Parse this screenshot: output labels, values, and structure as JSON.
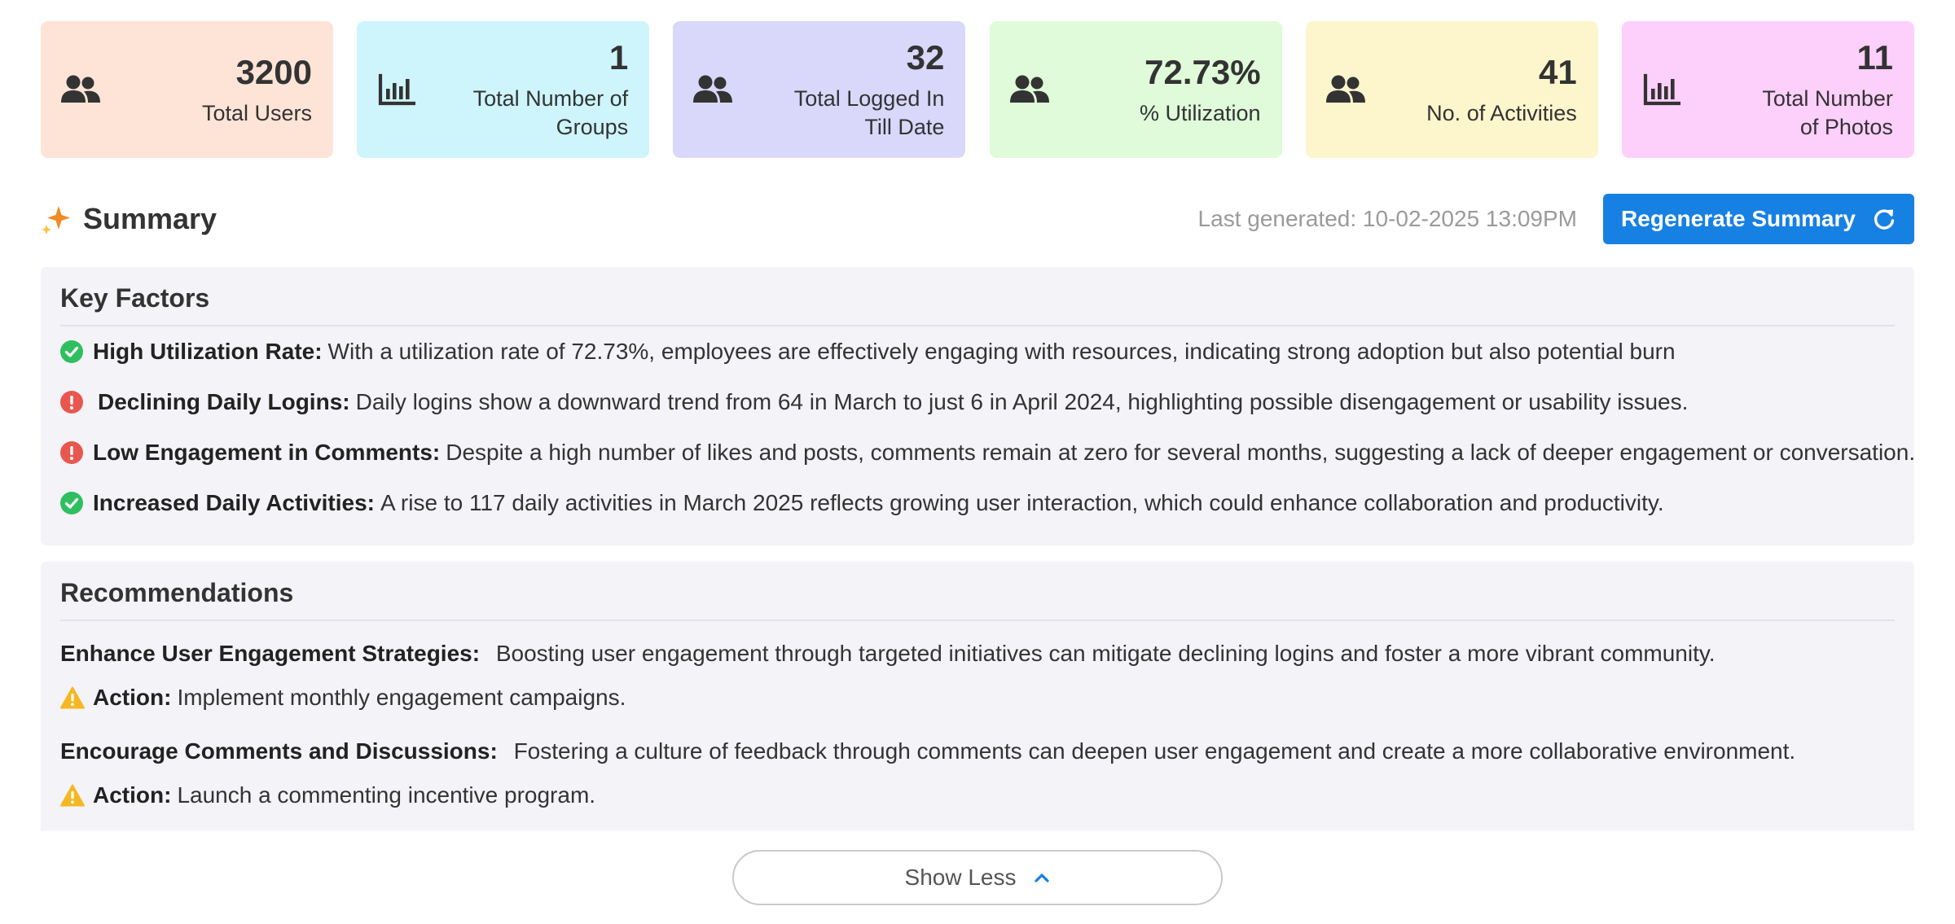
{
  "stats": [
    {
      "value": "3200",
      "label": "Total Users",
      "icon": "users-icon",
      "bg": "#fde4d6"
    },
    {
      "value": "1",
      "label": "Total Number of Groups",
      "icon": "bar-chart-icon",
      "bg": "#cdf5fb"
    },
    {
      "value": "32",
      "label": "Total Logged In Till Date",
      "icon": "users-icon",
      "bg": "#d9d8fb"
    },
    {
      "value": "72.73%",
      "label": "% Utilization",
      "icon": "users-icon",
      "bg": "#dffbd9"
    },
    {
      "value": "41",
      "label": "No. of Activities",
      "icon": "users-icon",
      "bg": "#fdf5cc"
    },
    {
      "value": "11",
      "label": "Total Number of Photos",
      "icon": "bar-chart-icon",
      "bg": "#fdcffb"
    }
  ],
  "summary": {
    "title": "Summary",
    "last_generated": "Last generated: 10-02-2025 13:09PM",
    "regenerate_label": "Regenerate Summary"
  },
  "key_factors": {
    "title": "Key Factors",
    "items": [
      {
        "status": "positive",
        "heading": "High Utilization Rate:",
        "text": "With a utilization rate of 72.73%, employees are effectively engaging with resources, indicating strong adoption but also potential burn"
      },
      {
        "status": "negative",
        "heading": "Declining Daily Logins:",
        "text": "Daily logins show a downward trend from 64 in March to just 6 in April 2024, highlighting possible disengagement or usability issues."
      },
      {
        "status": "negative",
        "heading": "Low Engagement in Comments:",
        "text": "Despite a high number of likes and posts, comments remain at zero for several months, suggesting a lack of deeper engagement or conversation."
      },
      {
        "status": "positive",
        "heading": "Increased Daily Activities:",
        "text": "A rise to 117 daily activities in March 2025 reflects growing user interaction, which could enhance collaboration and productivity."
      }
    ]
  },
  "recommendations": {
    "title": "Recommendations",
    "items": [
      {
        "heading": "Enhance User Engagement Strategies:",
        "text": "Boosting user engagement through targeted initiatives can mitigate declining logins and foster a more vibrant community.",
        "action_label": "Action:",
        "action_text": "Implement monthly engagement campaigns."
      },
      {
        "heading": "Encourage Comments and Discussions:",
        "text": "Fostering a culture of feedback through comments can deepen user engagement and create a more collaborative environment.",
        "action_label": "Action:",
        "action_text": "Launch a commenting incentive program."
      }
    ]
  },
  "show_less_label": "Show Less",
  "colors": {
    "accent": "#1780e3",
    "positive": "#2fbf5f",
    "negative": "#e8574f",
    "warning": "#f5b722"
  }
}
